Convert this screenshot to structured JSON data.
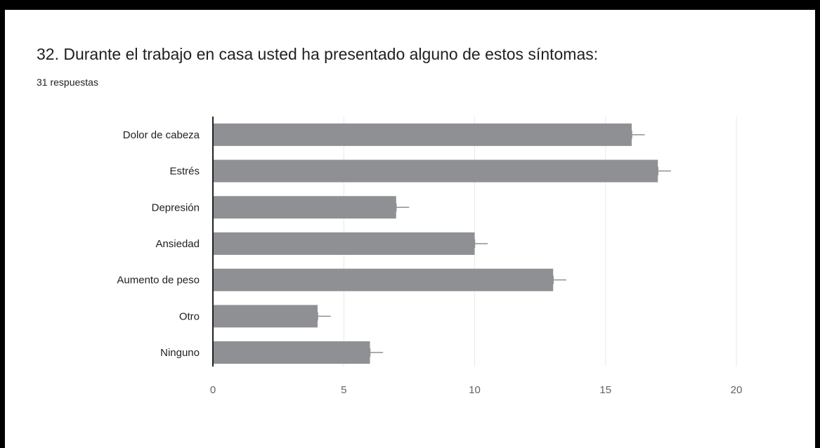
{
  "title": "32. Durante el trabajo en casa usted ha presentado alguno de estos síntomas:",
  "subtitle": "31 respuestas",
  "colors": {
    "bar": "#8e9094",
    "grid": "#e8e8e8",
    "axis": "#202124",
    "errorbar": "#8e9094"
  },
  "chart_data": {
    "type": "bar",
    "orientation": "horizontal",
    "title": "32. Durante el trabajo en casa usted ha presentado alguno de estos síntomas:",
    "subtitle": "31 respuestas",
    "categories": [
      "Dolor de cabeza",
      "Estrés",
      "Depresión",
      "Ansiedad",
      "Aumento de peso",
      "Otro",
      "Ninguno"
    ],
    "values": [
      16,
      17,
      7,
      10,
      13,
      4,
      6
    ],
    "xlim": [
      0,
      20
    ],
    "xticks": [
      0,
      5,
      10,
      15,
      20
    ],
    "xlabel": "",
    "ylabel": "",
    "grid": true,
    "error_bars": true,
    "legend": "none"
  }
}
